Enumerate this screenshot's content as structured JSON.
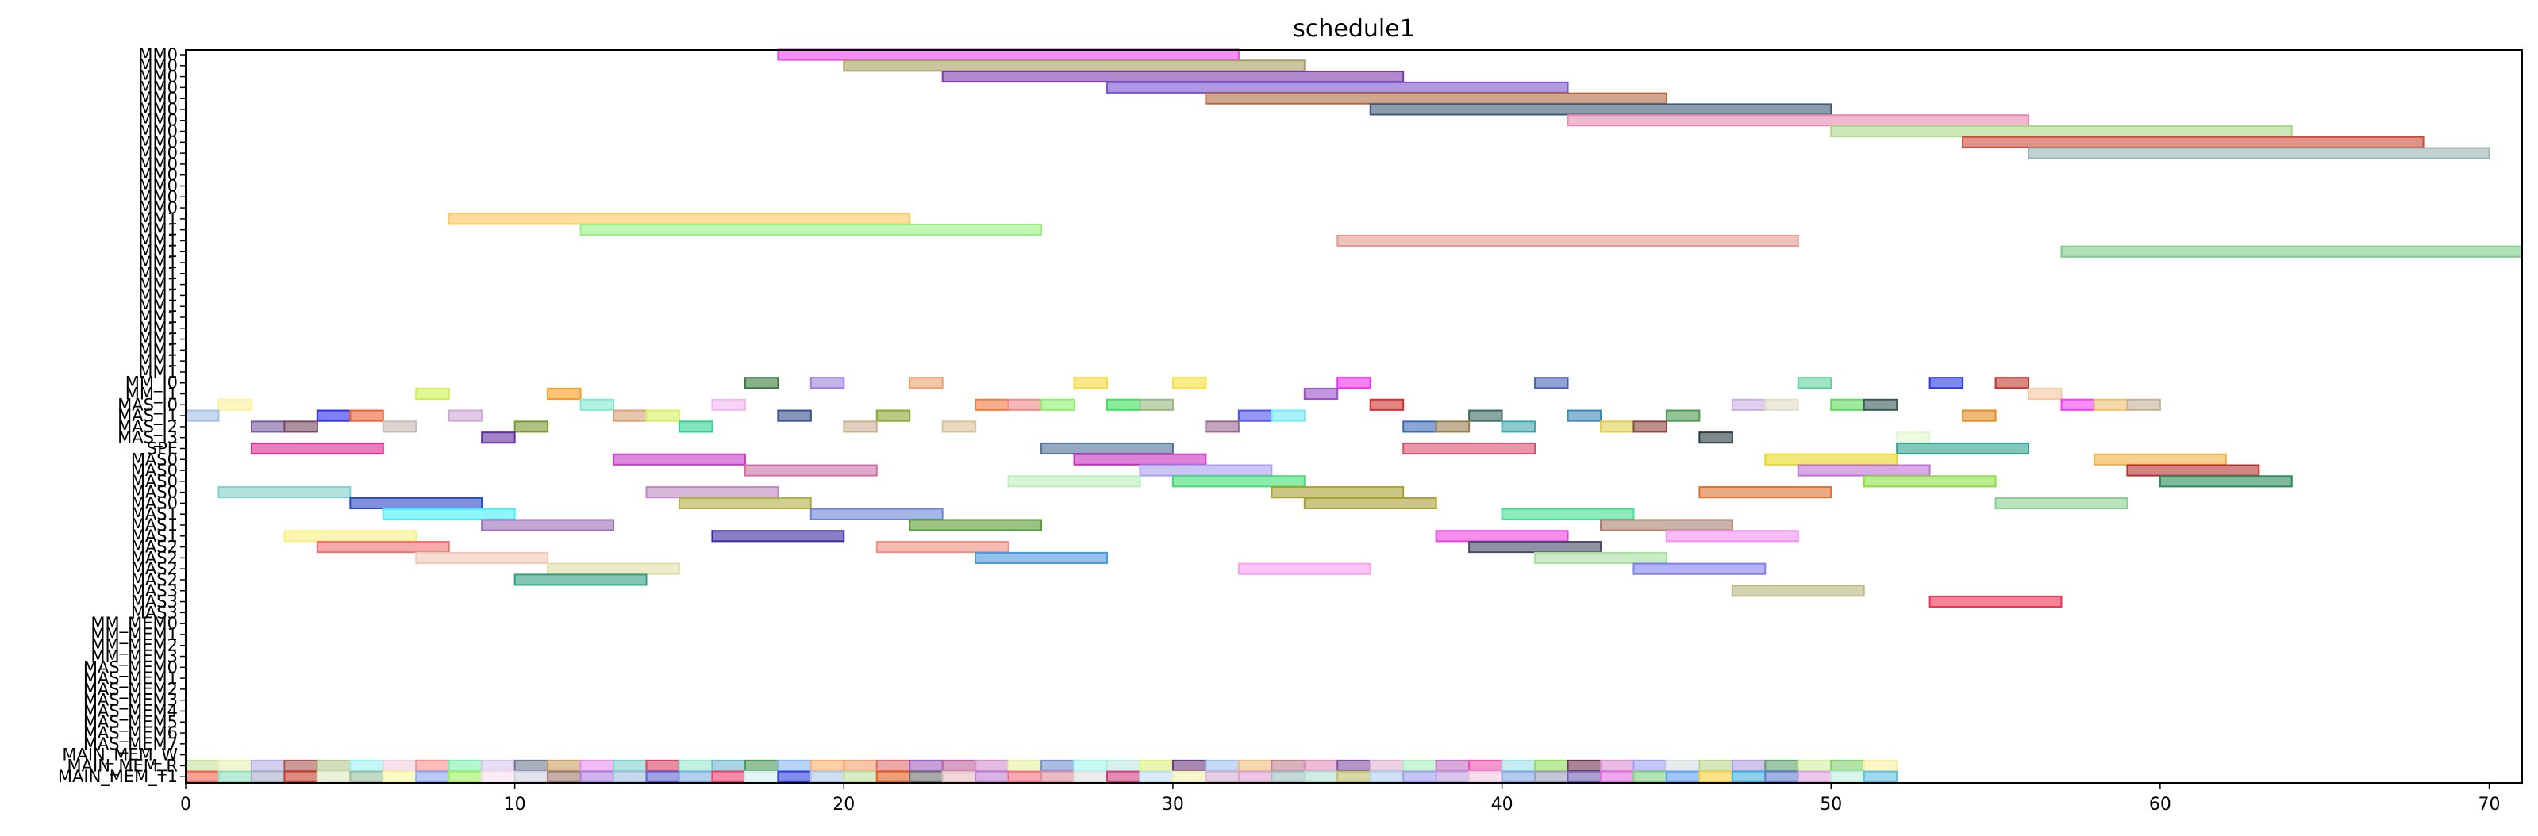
{
  "chart_data": {
    "type": "gantt",
    "title": "schedule1",
    "xlim": [
      0,
      71
    ],
    "x_ticks": [
      0,
      10,
      20,
      30,
      40,
      50,
      60,
      70
    ],
    "grid": false,
    "rows": [
      "MM0",
      "MM0",
      "MM0",
      "MM0",
      "MM0",
      "MM0",
      "MM0",
      "MM0",
      "MM0",
      "MM0",
      "MM0",
      "MM0",
      "MM0",
      "MM0",
      "MM0",
      "MM1",
      "MM1",
      "MM1",
      "MM1",
      "MM1",
      "MM1",
      "MM1",
      "MM1",
      "MM1",
      "MM1",
      "MM1",
      "MM1",
      "MM1",
      "MM1",
      "MM1",
      "MM_I0",
      "MM_I1",
      "MAS_I0",
      "MAS_I1",
      "MAS_I2",
      "MAS_I3",
      "SPE",
      "MAS0",
      "MAS0",
      "MAS0",
      "MAS0",
      "MAS0",
      "MAS1",
      "MAS1",
      "MAS1",
      "MAS2",
      "MAS2",
      "MAS2",
      "MAS2",
      "MAS3",
      "MAS3",
      "MAS3",
      "MM_MEM0",
      "MM_MEM1",
      "MM_MEM2",
      "MM_MEM3",
      "MAS_MEM0",
      "MAS_MEM1",
      "MAS_MEM2",
      "MAS_MEM3",
      "MAS_MEM4",
      "MAS_MEM5",
      "MAS_MEM6",
      "MAS_MEM7",
      "MAIN_MEM_W",
      "MAIN_MEM_R",
      "MAIN_MEM_T1"
    ],
    "bars": [
      {
        "row": 0,
        "start": 18,
        "end": 32,
        "color": "#ee44ee"
      },
      {
        "row": 1,
        "start": 20,
        "end": 34,
        "color": "#a9a060"
      },
      {
        "row": 2,
        "start": 23,
        "end": 37,
        "color": "#7a3aa8"
      },
      {
        "row": 3,
        "start": 28,
        "end": 42,
        "color": "#7a55d0"
      },
      {
        "row": 4,
        "start": 31,
        "end": 45,
        "color": "#b06a40"
      },
      {
        "row": 5,
        "start": 36,
        "end": 50,
        "color": "#3d5a7a"
      },
      {
        "row": 6,
        "start": 42,
        "end": 56,
        "color": "#e68ab0"
      },
      {
        "row": 7,
        "start": 50,
        "end": 64,
        "color": "#a8d888"
      },
      {
        "row": 8,
        "start": 54,
        "end": 68,
        "color": "#cc4a3a"
      },
      {
        "row": 9,
        "start": 56,
        "end": 70,
        "color": "#98b4b0"
      },
      {
        "row": 15,
        "start": 8,
        "end": 22,
        "color": "#ffc860"
      },
      {
        "row": 16,
        "start": 12,
        "end": 26,
        "color": "#98f080"
      },
      {
        "row": 17,
        "start": 35,
        "end": 49,
        "color": "#e69a90"
      },
      {
        "row": 18,
        "start": 57,
        "end": 71,
        "color": "#7acc88"
      },
      {
        "row": 30,
        "start": 17,
        "end": 18,
        "color": "#3a7a40"
      },
      {
        "row": 30,
        "start": 19,
        "end": 20,
        "color": "#9a80d8"
      },
      {
        "row": 30,
        "start": 22,
        "end": 23,
        "color": "#f0a070"
      },
      {
        "row": 30,
        "start": 27,
        "end": 28,
        "color": "#f6d840"
      },
      {
        "row": 30,
        "start": 30,
        "end": 31,
        "color": "#f8e040"
      },
      {
        "row": 30,
        "start": 35,
        "end": 36,
        "color": "#f030f0"
      },
      {
        "row": 30,
        "start": 41,
        "end": 42,
        "color": "#4a60b8"
      },
      {
        "row": 30,
        "start": 49,
        "end": 50,
        "color": "#60d0a0"
      },
      {
        "row": 30,
        "start": 53,
        "end": 54,
        "color": "#2a38e0"
      },
      {
        "row": 30,
        "start": 55,
        "end": 56,
        "color": "#c03830"
      },
      {
        "row": 31,
        "start": 7,
        "end": 8,
        "color": "#d0f050"
      },
      {
        "row": 31,
        "start": 11,
        "end": 12,
        "color": "#ff9a20"
      },
      {
        "row": 31,
        "start": 34,
        "end": 35,
        "color": "#9a50c8"
      },
      {
        "row": 31,
        "start": 56,
        "end": 57,
        "color": "#f8c8a0"
      },
      {
        "row": 32,
        "start": 1,
        "end": 2,
        "color": "#fff0a0"
      },
      {
        "row": 32,
        "start": 12,
        "end": 13,
        "color": "#80e8d0"
      },
      {
        "row": 32,
        "start": 16,
        "end": 17,
        "color": "#f0b8f0"
      },
      {
        "row": 32,
        "start": 24,
        "end": 25,
        "color": "#f07a40"
      },
      {
        "row": 32,
        "start": 25,
        "end": 26,
        "color": "#f08a8a"
      },
      {
        "row": 32,
        "start": 26,
        "end": 27,
        "color": "#90f070"
      },
      {
        "row": 32,
        "start": 28,
        "end": 29,
        "color": "#40e060"
      },
      {
        "row": 32,
        "start": 29,
        "end": 30,
        "color": "#98b880"
      },
      {
        "row": 32,
        "start": 36,
        "end": 37,
        "color": "#d03030"
      },
      {
        "row": 32,
        "start": 47,
        "end": 48,
        "color": "#c8b0e0"
      },
      {
        "row": 32,
        "start": 48,
        "end": 49,
        "color": "#e0e0c8"
      },
      {
        "row": 32,
        "start": 50,
        "end": 51,
        "color": "#60d860"
      },
      {
        "row": 32,
        "start": 51,
        "end": 52,
        "color": "#3a5a5a"
      },
      {
        "row": 32,
        "start": 57,
        "end": 58,
        "color": "#f040f0"
      },
      {
        "row": 32,
        "start": 58,
        "end": 59,
        "color": "#f0c070"
      },
      {
        "row": 32,
        "start": 59,
        "end": 60,
        "color": "#c8b098"
      },
      {
        "row": 33,
        "start": 0,
        "end": 1,
        "color": "#a0c0e8"
      },
      {
        "row": 33,
        "start": 4,
        "end": 5,
        "color": "#2a2af0"
      },
      {
        "row": 33,
        "start": 5,
        "end": 6,
        "color": "#f06030"
      },
      {
        "row": 33,
        "start": 8,
        "end": 9,
        "color": "#d0a8d8"
      },
      {
        "row": 33,
        "start": 13,
        "end": 14,
        "color": "#d8a078"
      },
      {
        "row": 33,
        "start": 14,
        "end": 15,
        "color": "#d8f060"
      },
      {
        "row": 33,
        "start": 18,
        "end": 19,
        "color": "#3a5090"
      },
      {
        "row": 33,
        "start": 21,
        "end": 22,
        "color": "#8aa830"
      },
      {
        "row": 33,
        "start": 32,
        "end": 33,
        "color": "#5050f0"
      },
      {
        "row": 33,
        "start": 33,
        "end": 34,
        "color": "#70e8f8"
      },
      {
        "row": 33,
        "start": 39,
        "end": 40,
        "color": "#3a6a60"
      },
      {
        "row": 33,
        "start": 42,
        "end": 43,
        "color": "#3a8ab8"
      },
      {
        "row": 33,
        "start": 45,
        "end": 46,
        "color": "#4a9a50"
      },
      {
        "row": 33,
        "start": 54,
        "end": 55,
        "color": "#e88a20"
      },
      {
        "row": 34,
        "start": 2,
        "end": 3,
        "color": "#7a5aa0"
      },
      {
        "row": 34,
        "start": 3,
        "end": 4,
        "color": "#7a4a60"
      },
      {
        "row": 34,
        "start": 6,
        "end": 7,
        "color": "#c8b8b8"
      },
      {
        "row": 34,
        "start": 10,
        "end": 11,
        "color": "#7a9a30"
      },
      {
        "row": 34,
        "start": 15,
        "end": 16,
        "color": "#30d090"
      },
      {
        "row": 34,
        "start": 20,
        "end": 21,
        "color": "#c8b090"
      },
      {
        "row": 34,
        "start": 23,
        "end": 24,
        "color": "#d8c098"
      },
      {
        "row": 34,
        "start": 31,
        "end": 32,
        "color": "#9a6a90"
      },
      {
        "row": 34,
        "start": 37,
        "end": 38,
        "color": "#3a6ab8"
      },
      {
        "row": 34,
        "start": 38,
        "end": 39,
        "color": "#9a8050"
      },
      {
        "row": 34,
        "start": 40,
        "end": 41,
        "color": "#40a8b0"
      },
      {
        "row": 34,
        "start": 43,
        "end": 44,
        "color": "#e0d050"
      },
      {
        "row": 34,
        "start": 44,
        "end": 45,
        "color": "#8a4a40"
      },
      {
        "row": 35,
        "start": 9,
        "end": 10,
        "color": "#6030a0"
      },
      {
        "row": 35,
        "start": 46,
        "end": 47,
        "color": "#2a3a40"
      },
      {
        "row": 35,
        "start": 52,
        "end": 53,
        "color": "#e0f8d0"
      },
      {
        "row": 36,
        "start": 2,
        "end": 6,
        "color": "#e02890"
      },
      {
        "row": 36,
        "start": 26,
        "end": 30,
        "color": "#50709a"
      },
      {
        "row": 36,
        "start": 37,
        "end": 41,
        "color": "#d85070"
      },
      {
        "row": 36,
        "start": 52,
        "end": 56,
        "color": "#30a090"
      },
      {
        "row": 37,
        "start": 13,
        "end": 17,
        "color": "#c838c8"
      },
      {
        "row": 37,
        "start": 27,
        "end": 31,
        "color": "#c830c0"
      },
      {
        "row": 37,
        "start": 48,
        "end": 52,
        "color": "#e8d820"
      },
      {
        "row": 37,
        "start": 58,
        "end": 62,
        "color": "#f0b040"
      },
      {
        "row": 38,
        "start": 17,
        "end": 21,
        "color": "#d070a8"
      },
      {
        "row": 38,
        "start": 29,
        "end": 33,
        "color": "#a8a0f0"
      },
      {
        "row": 38,
        "start": 49,
        "end": 53,
        "color": "#c070d8"
      },
      {
        "row": 38,
        "start": 59,
        "end": 63,
        "color": "#b83030"
      },
      {
        "row": 39,
        "start": 25,
        "end": 29,
        "color": "#b8f0b8"
      },
      {
        "row": 39,
        "start": 30,
        "end": 34,
        "color": "#40e070"
      },
      {
        "row": 39,
        "start": 51,
        "end": 55,
        "color": "#88e040"
      },
      {
        "row": 39,
        "start": 60,
        "end": 64,
        "color": "#2a8a5a"
      },
      {
        "row": 40,
        "start": 1,
        "end": 5,
        "color": "#80d0c8"
      },
      {
        "row": 40,
        "start": 14,
        "end": 18,
        "color": "#c088c0"
      },
      {
        "row": 40,
        "start": 33,
        "end": 37,
        "color": "#a8a030"
      },
      {
        "row": 40,
        "start": 46,
        "end": 50,
        "color": "#e07030"
      },
      {
        "row": 41,
        "start": 5,
        "end": 9,
        "color": "#2a48c8"
      },
      {
        "row": 41,
        "start": 15,
        "end": 19,
        "color": "#b0b040"
      },
      {
        "row": 41,
        "start": 34,
        "end": 38,
        "color": "#a8a030"
      },
      {
        "row": 41,
        "start": 55,
        "end": 59,
        "color": "#88d090"
      },
      {
        "row": 42,
        "start": 6,
        "end": 10,
        "color": "#40f0f8"
      },
      {
        "row": 42,
        "start": 19,
        "end": 23,
        "color": "#6a88d8"
      },
      {
        "row": 42,
        "start": 40,
        "end": 44,
        "color": "#40e090"
      },
      {
        "row": 43,
        "start": 9,
        "end": 13,
        "color": "#9a70b8"
      },
      {
        "row": 43,
        "start": 22,
        "end": 26,
        "color": "#5a9a30"
      },
      {
        "row": 43,
        "start": 43,
        "end": 47,
        "color": "#a88070"
      },
      {
        "row": 44,
        "start": 3,
        "end": 7,
        "color": "#f8f080"
      },
      {
        "row": 44,
        "start": 16,
        "end": 20,
        "color": "#3a2aa0"
      },
      {
        "row": 44,
        "start": 38,
        "end": 42,
        "color": "#f040e0"
      },
      {
        "row": 44,
        "start": 45,
        "end": 49,
        "color": "#f090f0"
      },
      {
        "row": 45,
        "start": 4,
        "end": 8,
        "color": "#f07070"
      },
      {
        "row": 45,
        "start": 21,
        "end": 25,
        "color": "#f09080"
      },
      {
        "row": 45,
        "start": 39,
        "end": 43,
        "color": "#4a4a6a"
      },
      {
        "row": 46,
        "start": 7,
        "end": 11,
        "color": "#f0c8b8"
      },
      {
        "row": 46,
        "start": 24,
        "end": 28,
        "color": "#4a98e0"
      },
      {
        "row": 46,
        "start": 41,
        "end": 45,
        "color": "#a8e0a0"
      },
      {
        "row": 47,
        "start": 11,
        "end": 15,
        "color": "#e0e0a8"
      },
      {
        "row": 47,
        "start": 32,
        "end": 36,
        "color": "#f8a0f0"
      },
      {
        "row": 47,
        "start": 44,
        "end": 48,
        "color": "#8080f0"
      },
      {
        "row": 48,
        "start": 10,
        "end": 14,
        "color": "#30a080"
      },
      {
        "row": 49,
        "start": 47,
        "end": 51,
        "color": "#b8b880"
      },
      {
        "row": 50,
        "start": 53,
        "end": 57,
        "color": "#f03050"
      }
    ],
    "mem_palette_r": [
      "#c8e0a0",
      "#e8f0b0",
      "#b8b0e0",
      "#a85a50",
      "#b8c890",
      "#a0f0f0",
      "#f0d0e0",
      "#f89090",
      "#80f0b0",
      "#d8c8f0",
      "#707890",
      "#c8a060",
      "#e890f0",
      "#80d0d0",
      "#d84060",
      "#98e8d0",
      "#70b8d0",
      "#4a9a58",
      "#8ab8f0",
      "#f8b070",
      "#f0a070",
      "#e07070",
      "#a060c0",
      "#c060a0",
      "#d090d0",
      "#e8f0a0",
      "#7090d0",
      "#a0f8f0",
      "#c0e8e0",
      "#e0f080",
      "#6a3a7a",
      "#a0c0f0",
      "#f0c080",
      "#c08090",
      "#e090c0",
      "#8050a0",
      "#e0b0d0",
      "#a8f0c0",
      "#c070c0",
      "#f050b0",
      "#a0e0e8",
      "#90e060",
      "#703050",
      "#d890d0",
      "#a0a0f0",
      "#d8e0e0",
      "#b8d890",
      "#b0a0e0",
      "#60a070",
      "#d0f0a0",
      "#80d070",
      "#f8f0a0"
    ],
    "mem_palette_w": [
      "#f06050",
      "#90e0c0",
      "#a8b0c8",
      "#c84030",
      "#e0e8c8",
      "#98c0a0",
      "#f8f8a0",
      "#8aa8f0",
      "#a0f060",
      "#f8e0f0",
      "#d0d0e0",
      "#a07870",
      "#b080e0",
      "#a0c0e0",
      "#6060d0",
      "#80b0e0",
      "#f04070",
      "#d0f0f0",
      "#3040e0",
      "#b0c8e8",
      "#c0e0a0",
      "#e06020",
      "#707070",
      "#e8c0c0",
      "#c080d0",
      "#f07080",
      "#e090a0",
      "#e0e0e0",
      "#d04080",
      "#c0e0f0",
      "#f0f0b0",
      "#d0b0d0",
      "#e0a0d0",
      "#a0c0c0",
      "#b0e0d0",
      "#c0c070",
      "#b0d0f0",
      "#a0a0f0",
      "#c0a0e0",
      "#f0c8e0",
      "#80a8e0",
      "#a0a0c0",
      "#7060b0",
      "#e070e0",
      "#80d080",
      "#60a0f0",
      "#f8d040",
      "#40b0e0",
      "#6080d0",
      "#e0a0e0",
      "#c0f0e0",
      "#60c0e0"
    ]
  }
}
